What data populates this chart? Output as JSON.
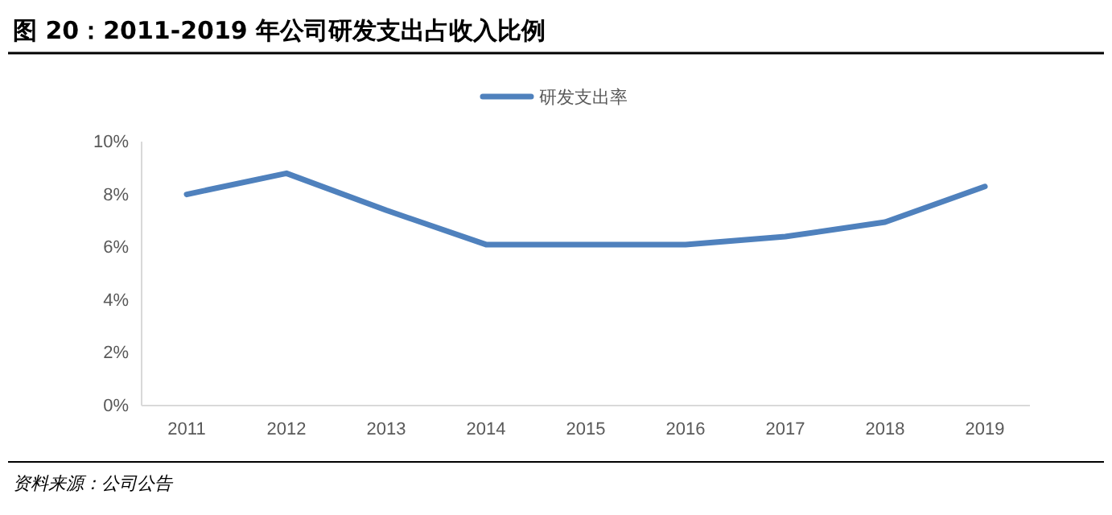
{
  "chart_data": {
    "type": "line",
    "title": "图 20：2011-2019 年公司研发支出占收入比例",
    "categories": [
      "2011",
      "2012",
      "2013",
      "2014",
      "2015",
      "2016",
      "2017",
      "2018",
      "2019"
    ],
    "series": [
      {
        "name": "研发支出率",
        "color": "#4f81bd",
        "values": [
          8.0,
          8.8,
          7.4,
          6.1,
          6.1,
          6.1,
          6.4,
          6.95,
          8.3
        ]
      }
    ],
    "ylim": [
      0,
      10
    ],
    "yticks": [
      {
        "value": 0,
        "label": "0%"
      },
      {
        "value": 2,
        "label": "2%"
      },
      {
        "value": 4,
        "label": "4%"
      },
      {
        "value": 6,
        "label": "6%"
      },
      {
        "value": 8,
        "label": "8%"
      },
      {
        "value": 10,
        "label": "10%"
      }
    ],
    "grid": false,
    "legend": "top",
    "marker": "none",
    "line_style": "solid",
    "annotations": [
      "资料来源：公司公告"
    ]
  }
}
